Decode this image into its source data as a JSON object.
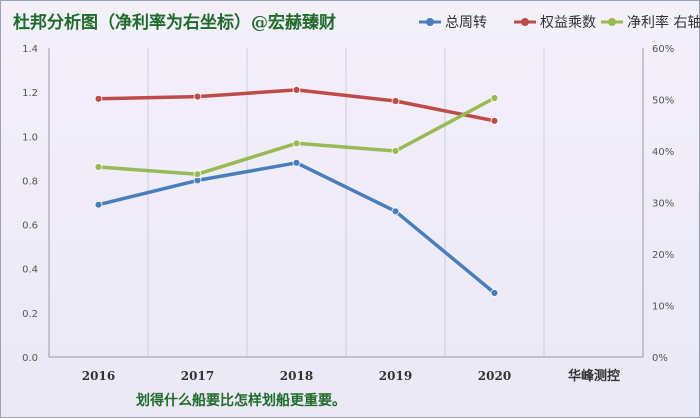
{
  "chart_data": {
    "type": "line",
    "title": "杜邦分析图（净利率为右坐标）@宏赫臻财",
    "categories": [
      "2016",
      "2017",
      "2018",
      "2019",
      "2020"
    ],
    "extra_x_label": "华峰测控",
    "caption": "划得什么船要比怎样划船更重要。",
    "y_left": {
      "ticks": [
        "0.0",
        "0.2",
        "0.4",
        "0.6",
        "0.8",
        "1.0",
        "1.2",
        "1.4"
      ],
      "min": 0,
      "max": 1.4
    },
    "y_right": {
      "ticks": [
        "0%",
        "10%",
        "20%",
        "30%",
        "40%",
        "50%",
        "60%"
      ],
      "min": 0,
      "max": 60
    },
    "legend_position": "top-right",
    "grid": "vertical",
    "series": [
      {
        "name": "总周转",
        "axis": "left",
        "color": "#4a7ebb",
        "values": [
          0.69,
          0.8,
          0.88,
          0.66,
          0.29
        ]
      },
      {
        "name": "权益乘数",
        "axis": "left",
        "color": "#be4b48",
        "values": [
          1.17,
          1.18,
          1.21,
          1.16,
          1.07
        ]
      },
      {
        "name": "净利率 右轴",
        "axis": "right",
        "color": "#98b954",
        "values": [
          36.9,
          35.5,
          41.5,
          40.0,
          50.3
        ]
      }
    ]
  }
}
